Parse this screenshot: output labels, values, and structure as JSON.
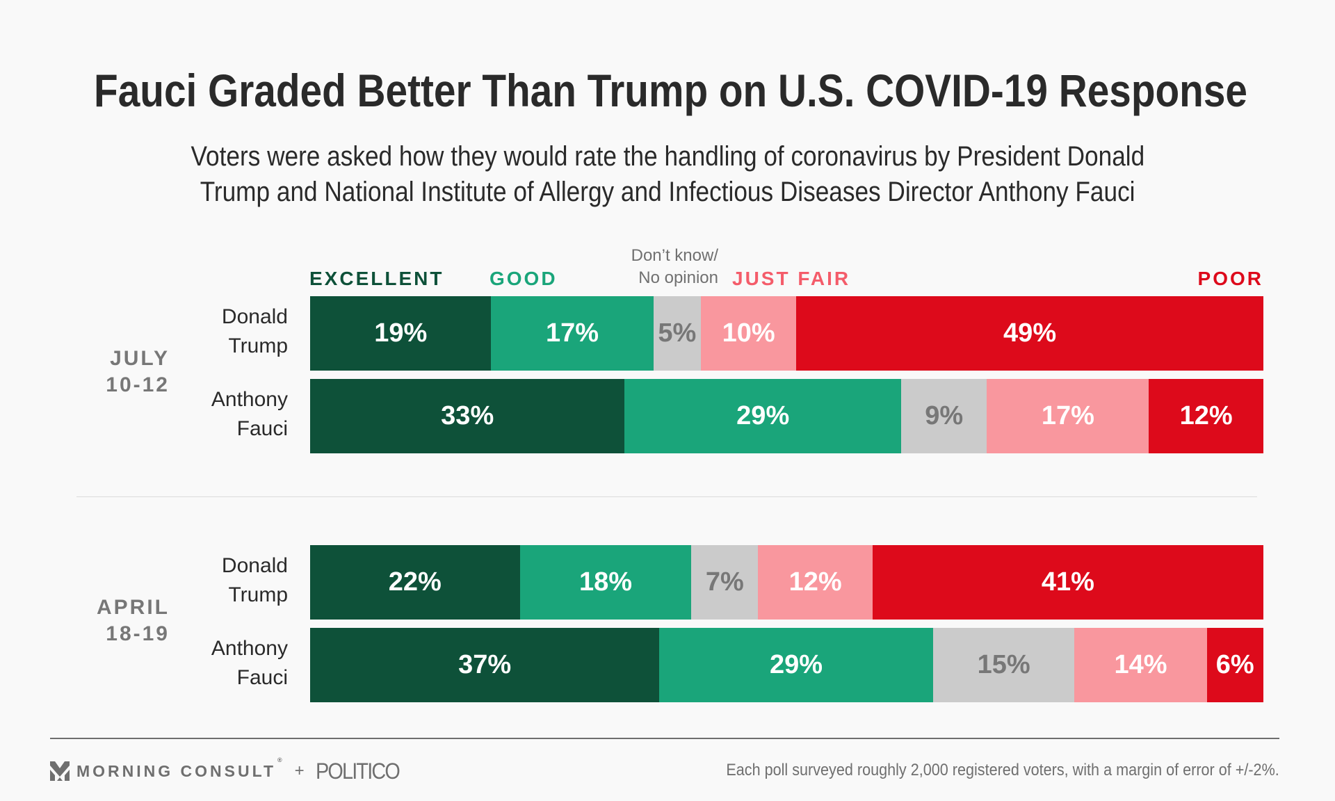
{
  "header": {
    "title": "Fauci Graded Better Than Trump on U.S. COVID-19 Response",
    "subtitle_line1": "Voters were asked how they would rate the handling of coronavirus by President Donald",
    "subtitle_line2": "Trump and National Institute of Allergy and Infectious Diseases Director Anthony Fauci"
  },
  "legend": {
    "excellent": "EXCELLENT",
    "good": "GOOD",
    "dont_know_line1": "Don’t know/",
    "dont_know_line2": "No opinion",
    "just_fair": "JUST FAIR",
    "poor": "POOR"
  },
  "colors": {
    "excellent": "#0e5139",
    "good": "#1aa57a",
    "dont_know": "#cbcbcb",
    "just_fair": "#f9979e",
    "poor": "#dd0a1b",
    "legend_just_fair": "#f45c6a",
    "dont_know_text": "#777777"
  },
  "chart_data": {
    "type": "bar",
    "orientation": "horizontal-stacked",
    "title": "Fauci Graded Better Than Trump on U.S. COVID-19 Response",
    "subtitle": "Voters were asked how they would rate the handling of coronavirus by President Donald Trump and National Institute of Allergy and Infectious Diseases Director Anthony Fauci",
    "unit": "%",
    "categories": [
      "Excellent",
      "Good",
      "Don't know/No opinion",
      "Just fair",
      "Poor"
    ],
    "groups": [
      {
        "label_line1": "JULY",
        "label_line2": "10-12",
        "rows": [
          {
            "name_line1": "Donald",
            "name_line2": "Trump",
            "values": [
              19,
              17,
              5,
              10,
              49
            ]
          },
          {
            "name_line1": "Anthony",
            "name_line2": "Fauci",
            "values": [
              33,
              29,
              9,
              17,
              12
            ]
          }
        ]
      },
      {
        "label_line1": "APRIL",
        "label_line2": "18-19",
        "rows": [
          {
            "name_line1": "Donald",
            "name_line2": "Trump",
            "values": [
              22,
              18,
              7,
              12,
              41
            ]
          },
          {
            "name_line1": "Anthony",
            "name_line2": "Fauci",
            "values": [
              37,
              29,
              15,
              14,
              6
            ]
          }
        ]
      }
    ],
    "legend_position": "top"
  },
  "footer": {
    "brand1": "MORNING CONSULT",
    "registered": "®",
    "plus": "+",
    "brand2": "POLITICO",
    "note": "Each poll surveyed roughly 2,000 registered voters, with a margin of error of +/-2%."
  }
}
